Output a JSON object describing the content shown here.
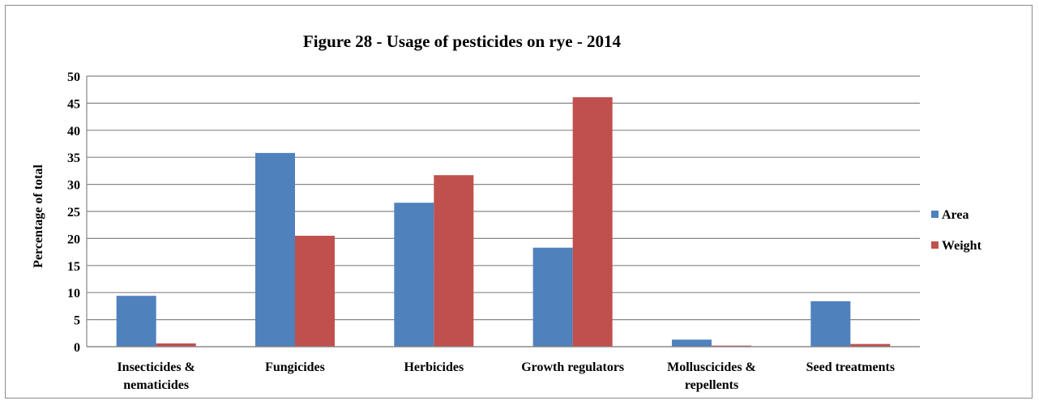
{
  "chart_data": {
    "type": "bar",
    "title": "Figure 28 - Usage of pesticides on rye - 2014",
    "xlabel": "",
    "ylabel": "Percentage of total",
    "ylim": [
      0,
      50
    ],
    "ytick_step": 5,
    "grid": true,
    "legend_position": "right",
    "categories": [
      [
        "Insecticides &",
        "nematicides"
      ],
      [
        "Fungicides"
      ],
      [
        "Herbicides"
      ],
      [
        "Growth regulators"
      ],
      [
        "Molluscicides &",
        "repellents"
      ],
      [
        "Seed treatments"
      ]
    ],
    "series": [
      {
        "name": "Area",
        "color": "#4f81bd",
        "values": [
          9.4,
          35.8,
          26.6,
          18.3,
          1.3,
          8.4
        ]
      },
      {
        "name": "Weight",
        "color": "#c0504d",
        "values": [
          0.6,
          20.5,
          31.7,
          46.1,
          0.2,
          0.5
        ]
      }
    ]
  }
}
